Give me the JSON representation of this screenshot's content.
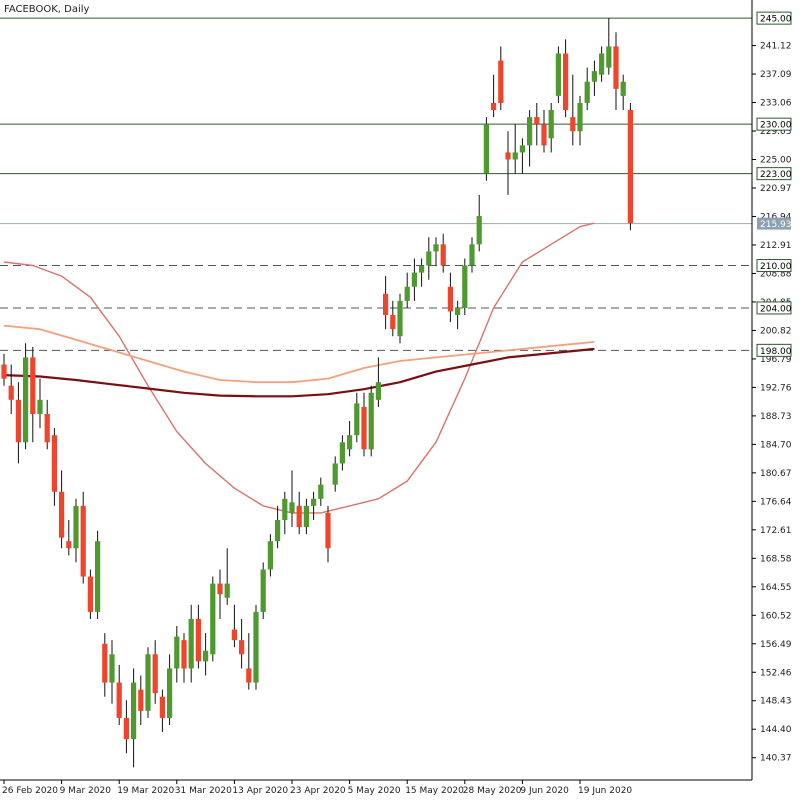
{
  "chart_data": {
    "type": "candlestick",
    "title": "FACEBOOK, Daily",
    "colors": {
      "bull": "#4e9a2e",
      "bear": "#f0442c",
      "wick": "#111111",
      "ma_short": "#d9736b",
      "ma_mid": "#f5a07a",
      "ma_long": "#7a0f12",
      "level_solid": "#2d5a2d",
      "level_dash": "#555555",
      "last_price_bg": "#8ea1b3"
    },
    "ylim": [
      137.5,
      247.0
    ],
    "y_ticks": [
      "241.12",
      "237.09",
      "233.06",
      "229.03",
      "225.00",
      "220.97",
      "216.94",
      "212.91",
      "208.88",
      "204.85",
      "200.82",
      "196.79",
      "192.76",
      "188.73",
      "184.70",
      "180.67",
      "176.64",
      "172.61",
      "168.58",
      "164.55",
      "160.52",
      "156.49",
      "152.46",
      "148.43",
      "144.40",
      "140.37"
    ],
    "x_ticks": [
      {
        "label": "26 Feb 2020",
        "index": 0
      },
      {
        "label": "9 Mar 2020",
        "index": 8
      },
      {
        "label": "19 Mar 2020",
        "index": 16
      },
      {
        "label": "31 Mar 2020",
        "index": 24
      },
      {
        "label": "13 Apr 2020",
        "index": 32
      },
      {
        "label": "23 Apr 2020",
        "index": 40
      },
      {
        "label": "5 May 2020",
        "index": 48
      },
      {
        "label": "15 May 2020",
        "index": 56
      },
      {
        "label": "28 May 2020",
        "index": 64
      },
      {
        "label": "9 Jun 2020",
        "index": 72
      },
      {
        "label": "19 Jun 2020",
        "index": 80
      }
    ],
    "levels": [
      {
        "value": 245.0,
        "label": "245.00",
        "style": "solid"
      },
      {
        "value": 230.0,
        "label": "230.00",
        "style": "solid"
      },
      {
        "value": 223.0,
        "label": "223.00",
        "style": "solid"
      },
      {
        "value": 210.0,
        "label": "210.00",
        "style": "dashed"
      },
      {
        "value": 204.0,
        "label": "204.00",
        "style": "dashed"
      },
      {
        "value": 198.0,
        "label": "198.00",
        "style": "dashed"
      }
    ],
    "last_price": {
      "value": 215.93,
      "label": "215.93"
    },
    "candles": [
      [
        196.0,
        197.5,
        193.0,
        194.0
      ],
      [
        193.0,
        196.0,
        189.0,
        191.0
      ],
      [
        191.0,
        193.5,
        182.0,
        185.0
      ],
      [
        185.0,
        199.0,
        184.0,
        197.0
      ],
      [
        197.0,
        198.5,
        185.0,
        189.0
      ],
      [
        189.0,
        194.0,
        187.0,
        191.0
      ],
      [
        189.0,
        191.0,
        184.0,
        185.0
      ],
      [
        186.0,
        187.0,
        176.0,
        178.0
      ],
      [
        178.0,
        181.0,
        170.0,
        171.5
      ],
      [
        171.0,
        174.0,
        169.0,
        170.0
      ],
      [
        170.0,
        177.0,
        168.0,
        176.0
      ],
      [
        176.0,
        178.0,
        165.0,
        166.0
      ],
      [
        166.0,
        167.0,
        160.0,
        161.0
      ],
      [
        161.0,
        172.5,
        160.0,
        171.0
      ],
      [
        156.5,
        158.0,
        149.0,
        151.0
      ],
      [
        151.0,
        157.0,
        148.0,
        155.0
      ],
      [
        151.0,
        153.5,
        145.0,
        146.0
      ],
      [
        146.0,
        148.5,
        141.0,
        143.0
      ],
      [
        143.0,
        153.0,
        139.0,
        151.0
      ],
      [
        150.0,
        152.0,
        145.0,
        147.0
      ],
      [
        147.0,
        156.0,
        146.0,
        155.0
      ],
      [
        155.0,
        157.0,
        148.0,
        149.5
      ],
      [
        149.0,
        150.0,
        144.0,
        146.0
      ],
      [
        146.0,
        155.0,
        145.0,
        153.0
      ],
      [
        153.0,
        159.0,
        151.0,
        157.5
      ],
      [
        157.0,
        158.0,
        151.0,
        153.0
      ],
      [
        153.0,
        162.0,
        151.0,
        160.0
      ],
      [
        160.0,
        162.0,
        153.0,
        154.0
      ],
      [
        154.0,
        158.0,
        152.0,
        155.5
      ],
      [
        155.0,
        166.0,
        154.0,
        165.0
      ],
      [
        165.0,
        167.0,
        160.0,
        163.5
      ],
      [
        163.0,
        170.0,
        162.0,
        165.0
      ],
      [
        158.5,
        162.0,
        156.0,
        157.0
      ],
      [
        157.0,
        160.0,
        153.0,
        155.0
      ],
      [
        153.0,
        158.0,
        150.0,
        151.0
      ],
      [
        151.0,
        162.0,
        150.0,
        161.0
      ],
      [
        161.0,
        168.0,
        160.0,
        167.0
      ],
      [
        167.0,
        172.0,
        166.0,
        171.0
      ],
      [
        171.0,
        176.0,
        170.0,
        174.0
      ],
      [
        174.0,
        178.0,
        172.0,
        177.0
      ],
      [
        175.0,
        181.0,
        173.0,
        176.5
      ],
      [
        176.0,
        178.0,
        172.0,
        173.0
      ],
      [
        173.0,
        177.0,
        172.0,
        176.0
      ],
      [
        176.0,
        178.0,
        174.0,
        177.0
      ],
      [
        177.0,
        180.0,
        176.0,
        179.0
      ],
      [
        175.0,
        176.0,
        168.0,
        170.0
      ],
      [
        179.0,
        183.0,
        178.0,
        182.0
      ],
      [
        182.0,
        186.0,
        181.0,
        185.0
      ],
      [
        184.0,
        188.0,
        183.0,
        186.0
      ],
      [
        186.0,
        192.0,
        185.0,
        190.5
      ],
      [
        190.0,
        192.0,
        183.0,
        184.0
      ],
      [
        184.0,
        193.0,
        183.0,
        192.0
      ],
      [
        191.0,
        197.0,
        190.0,
        193.5
      ],
      [
        206.0,
        208.5,
        201.0,
        203.0
      ],
      [
        203.0,
        205.0,
        200.0,
        201.0
      ],
      [
        200.0,
        206.0,
        199.0,
        205.0
      ],
      [
        205.0,
        209.0,
        204.0,
        207.0
      ],
      [
        207.0,
        211.0,
        205.0,
        209.0
      ],
      [
        209.0,
        211.0,
        207.0,
        210.0
      ],
      [
        210.0,
        214.0,
        208.0,
        212.0
      ],
      [
        212.0,
        214.0,
        210.0,
        213.0
      ],
      [
        213.0,
        214.5,
        209.0,
        210.0
      ],
      [
        207.0,
        209.0,
        202.0,
        203.5
      ],
      [
        203.0,
        205.0,
        201.0,
        204.0
      ],
      [
        204.0,
        211.0,
        203.0,
        210.0
      ],
      [
        210.0,
        214.0,
        209.0,
        213.0
      ],
      [
        213.0,
        220.0,
        212.0,
        217.0
      ],
      [
        223.0,
        231.0,
        222.0,
        230.0
      ],
      [
        233.0,
        237.0,
        231.0,
        232.0
      ],
      [
        239.0,
        241.0,
        232.0,
        233.0
      ],
      [
        226.0,
        229.0,
        220.0,
        225.0
      ],
      [
        225.0,
        230.0,
        223.0,
        226.0
      ],
      [
        226.0,
        228.0,
        223.0,
        227.0
      ],
      [
        227.0,
        232.0,
        224.0,
        231.0
      ],
      [
        231.0,
        233.0,
        227.0,
        230.0
      ],
      [
        230.0,
        232.0,
        226.0,
        227.0
      ],
      [
        228.0,
        233.0,
        226.0,
        232.0
      ],
      [
        234.0,
        241.0,
        233.0,
        240.0
      ],
      [
        240.0,
        242.0,
        231.0,
        232.0
      ],
      [
        231.0,
        237.0,
        227.0,
        229.0
      ],
      [
        229.0,
        234.0,
        227.0,
        233.0
      ],
      [
        233.0,
        238.0,
        232.0,
        236.0
      ],
      [
        236.0,
        239.0,
        234.0,
        237.5
      ],
      [
        237.0,
        241.0,
        236.0,
        240.0
      ],
      [
        238.0,
        245.0,
        237.0,
        241.0
      ],
      [
        241.0,
        243.0,
        232.0,
        235.0
      ],
      [
        234.0,
        237.0,
        232.0,
        236.0
      ],
      [
        232.0,
        233.0,
        215.0,
        216.0
      ]
    ],
    "series": [
      {
        "key": "ma_short",
        "values": [
          [
            0,
            210.5
          ],
          [
            4,
            210.0
          ],
          [
            8,
            208.5
          ],
          [
            12,
            205.5
          ],
          [
            16,
            200.0
          ],
          [
            20,
            193.0
          ],
          [
            24,
            186.5
          ],
          [
            28,
            182.0
          ],
          [
            32,
            178.5
          ],
          [
            36,
            176.0
          ],
          [
            40,
            175.0
          ],
          [
            44,
            175.0
          ],
          [
            48,
            176.0
          ],
          [
            52,
            177.0
          ],
          [
            56,
            179.5
          ],
          [
            60,
            185.0
          ],
          [
            64,
            194.0
          ],
          [
            68,
            204.0
          ],
          [
            72,
            210.5
          ],
          [
            76,
            213.0
          ],
          [
            80,
            215.5
          ],
          [
            82,
            216.0
          ]
        ]
      },
      {
        "key": "ma_mid",
        "values": [
          [
            0,
            201.5
          ],
          [
            5,
            201.0
          ],
          [
            10,
            199.5
          ],
          [
            15,
            198.0
          ],
          [
            20,
            196.5
          ],
          [
            25,
            195.0
          ],
          [
            30,
            193.8
          ],
          [
            35,
            193.5
          ],
          [
            40,
            193.5
          ],
          [
            45,
            194.0
          ],
          [
            50,
            195.5
          ],
          [
            55,
            196.5
          ],
          [
            60,
            197.0
          ],
          [
            65,
            197.5
          ],
          [
            70,
            198.0
          ],
          [
            75,
            198.5
          ],
          [
            80,
            199.0
          ],
          [
            82,
            199.2
          ]
        ]
      },
      {
        "key": "ma_long",
        "values": [
          [
            0,
            194.5
          ],
          [
            5,
            194.3
          ],
          [
            10,
            193.8
          ],
          [
            15,
            193.2
          ],
          [
            20,
            192.6
          ],
          [
            25,
            192.0
          ],
          [
            30,
            191.6
          ],
          [
            35,
            191.5
          ],
          [
            40,
            191.5
          ],
          [
            45,
            191.8
          ],
          [
            50,
            192.5
          ],
          [
            55,
            193.5
          ],
          [
            60,
            195.0
          ],
          [
            65,
            196.0
          ],
          [
            70,
            197.0
          ],
          [
            75,
            197.5
          ],
          [
            80,
            198.0
          ],
          [
            82,
            198.2
          ]
        ]
      }
    ]
  }
}
